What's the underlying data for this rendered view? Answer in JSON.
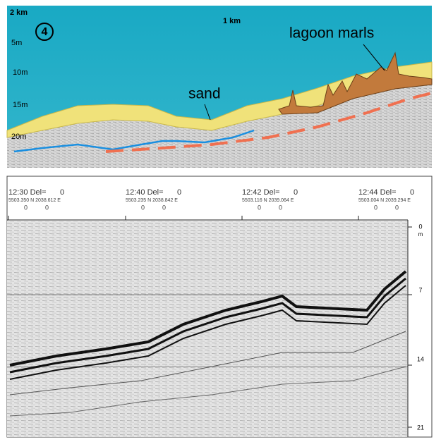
{
  "top_panel": {
    "panel_number": "4",
    "scale_labels": [
      "2 km",
      "1 km"
    ],
    "depth_labels": [
      "5m",
      "10m",
      "15m",
      "20m"
    ],
    "annotations": {
      "sand": "sand",
      "lagoon_marls": "lagoon marls"
    }
  },
  "bottom_panel": {
    "markers": [
      {
        "time": "12:30 Del=",
        "del": "0",
        "coords": "5503.350 N  2038.612 E",
        "sub": [
          "0",
          "0"
        ]
      },
      {
        "time": "12:40 Del=",
        "del": "0",
        "coords": "5503.235 N  2038.842 E",
        "sub": [
          "0",
          "0"
        ]
      },
      {
        "time": "12:42 Del=",
        "del": "0",
        "coords": "5503.116 N  2039.064 E",
        "sub": [
          "0",
          "0"
        ]
      },
      {
        "time": "12:44 Del=",
        "del": "0",
        "coords": "5503.004 N  2039.294 E",
        "sub": [
          "0",
          "0"
        ]
      }
    ],
    "depth_unit": "m",
    "depth_ticks": [
      "0",
      "7",
      "14",
      "21"
    ]
  }
}
